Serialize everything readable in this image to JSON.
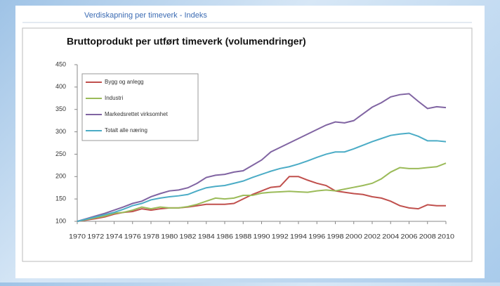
{
  "slide_title": "Verdiskapning per timeverk - Indeks",
  "chart_data": {
    "type": "line",
    "title": "Bruttoprodukt per utført timeverk (volumendringer)",
    "x": [
      1970,
      1971,
      1972,
      1973,
      1974,
      1975,
      1976,
      1977,
      1978,
      1979,
      1980,
      1981,
      1982,
      1983,
      1984,
      1985,
      1986,
      1987,
      1988,
      1989,
      1990,
      1991,
      1992,
      1993,
      1994,
      1995,
      1996,
      1997,
      1998,
      1999,
      2000,
      2001,
      2002,
      2003,
      2004,
      2005,
      2006,
      2007,
      2008,
      2009,
      2010
    ],
    "xlim": [
      1970,
      2010
    ],
    "xticks": [
      1970,
      1972,
      1974,
      1976,
      1978,
      1980,
      1982,
      1984,
      1986,
      1988,
      1990,
      1992,
      1994,
      1996,
      1998,
      2000,
      2002,
      2004,
      2006,
      2008,
      2010
    ],
    "ylim": [
      100,
      450
    ],
    "yticks": [
      100,
      150,
      200,
      250,
      300,
      350,
      400,
      450
    ],
    "grid": false,
    "legend": "top-left",
    "series": [
      {
        "name": "Bygg og anlegg",
        "color": "#c0504d",
        "values": [
          100,
          103,
          106,
          110,
          116,
          120,
          122,
          128,
          125,
          128,
          130,
          130,
          132,
          135,
          138,
          138,
          138,
          140,
          150,
          160,
          168,
          176,
          178,
          200,
          200,
          192,
          185,
          180,
          168,
          165,
          162,
          160,
          155,
          152,
          145,
          135,
          130,
          128,
          137,
          135,
          135
        ]
      },
      {
        "name": "Industri",
        "color": "#9bbb59",
        "values": [
          100,
          104,
          108,
          112,
          118,
          120,
          125,
          132,
          128,
          132,
          130,
          130,
          133,
          138,
          145,
          152,
          150,
          152,
          158,
          158,
          163,
          165,
          166,
          167,
          166,
          165,
          168,
          170,
          168,
          172,
          176,
          180,
          185,
          195,
          210,
          220,
          218,
          218,
          220,
          222,
          230
        ]
      },
      {
        "name": "Markedsrettet virksomhet",
        "color": "#8064a2",
        "values": [
          100,
          106,
          112,
          118,
          125,
          132,
          140,
          145,
          155,
          162,
          168,
          170,
          175,
          185,
          198,
          203,
          205,
          210,
          213,
          225,
          237,
          255,
          265,
          275,
          285,
          295,
          305,
          315,
          322,
          320,
          325,
          340,
          355,
          365,
          378,
          383,
          385,
          368,
          352,
          356,
          354
        ]
      },
      {
        "name": "Totalt alle næring",
        "color": "#4bacc6",
        "values": [
          100,
          105,
          110,
          115,
          120,
          127,
          135,
          140,
          148,
          152,
          155,
          157,
          160,
          168,
          175,
          178,
          180,
          185,
          190,
          198,
          205,
          212,
          218,
          222,
          228,
          235,
          243,
          250,
          255,
          255,
          262,
          270,
          278,
          285,
          292,
          295,
          297,
          290,
          280,
          280,
          278
        ]
      }
    ]
  }
}
